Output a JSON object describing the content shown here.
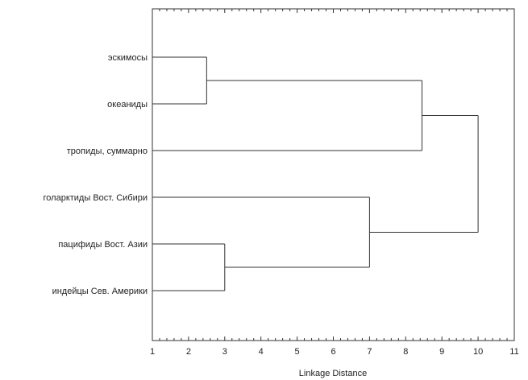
{
  "chart_data": {
    "type": "dendrogram",
    "title": "",
    "xlabel": "Linkage Distance",
    "xlim": [
      1,
      11
    ],
    "xticks": [
      1,
      2,
      3,
      4,
      5,
      6,
      7,
      8,
      9,
      10,
      11
    ],
    "grid": false,
    "leaves": [
      "эскимосы",
      "океаниды",
      "тропиды, суммарно",
      "голарктиды Вост. Сибири",
      "пацифиды Вост. Азии",
      "индейцы Сев. Америки"
    ],
    "merges": [
      {
        "left": "L0",
        "right": "L1",
        "distance": 2.5
      },
      {
        "left": "L4",
        "right": "L5",
        "distance": 3.0
      },
      {
        "left": "M0",
        "right": "L2",
        "distance": 8.45
      },
      {
        "left": "L3",
        "right": "M1",
        "distance": 7.0
      },
      {
        "left": "M2",
        "right": "M3",
        "distance": 10.0
      }
    ],
    "colors": {
      "line": "#333333",
      "frame": "#333333"
    }
  }
}
